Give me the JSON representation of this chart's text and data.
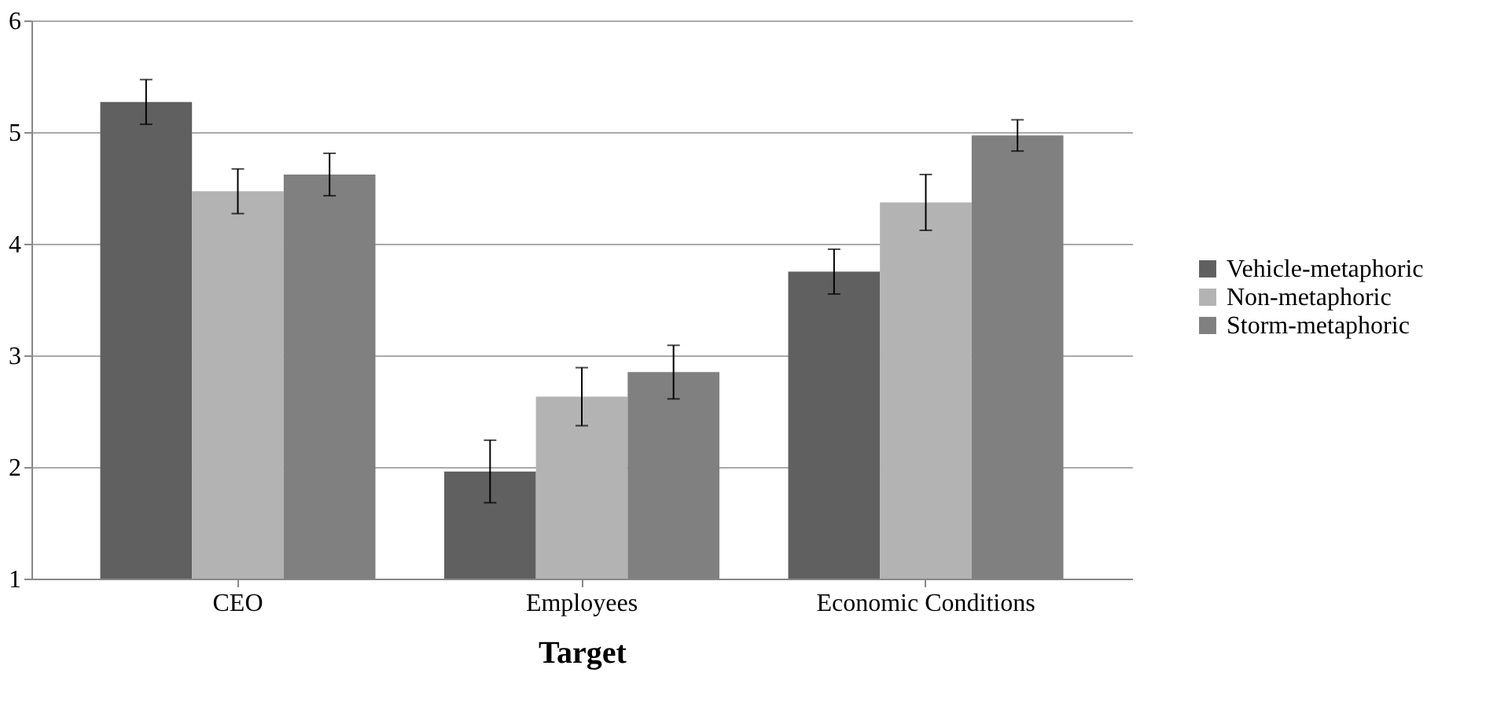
{
  "chart_data": {
    "type": "bar",
    "xlabel": "Target",
    "categories": [
      "CEO",
      "Employees",
      "Economic Conditions"
    ],
    "series": [
      {
        "name": "Vehicle-metaphoric",
        "color": "#606060",
        "values": [
          5.27,
          1.96,
          3.75
        ],
        "errors": [
          0.2,
          0.28,
          0.2
        ]
      },
      {
        "name": "Non-metaphoric",
        "color": "#b3b3b3",
        "values": [
          4.47,
          2.63,
          4.37
        ],
        "errors": [
          0.2,
          0.26,
          0.25
        ]
      },
      {
        "name": "Storm-metaphoric",
        "color": "#808080",
        "values": [
          4.62,
          2.85,
          4.97
        ],
        "errors": [
          0.19,
          0.24,
          0.14
        ]
      }
    ],
    "ylim": [
      1,
      6
    ],
    "yticks": [
      1,
      2,
      3,
      4,
      5,
      6
    ],
    "grid": "y",
    "legend": "right"
  }
}
